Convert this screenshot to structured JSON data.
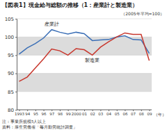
{
  "chart_data": {
    "type": "line",
    "title": "【図表1】現金給与総額の推移（1：産業計と製造業）",
    "subtitle": "（2005年平均=100）",
    "x_label": "（年）",
    "categories": [
      "1993",
      "94",
      "95",
      "96",
      "97",
      "98",
      "99",
      "2000",
      "01",
      "02",
      "03",
      "04",
      "05",
      "06",
      "07",
      "08",
      "09"
    ],
    "series": [
      {
        "name": "産業計",
        "color": "#3b6fb6",
        "values": [
          95.3,
          97.0,
          98.2,
          99.7,
          102.0,
          101.3,
          100.8,
          101.3,
          100.9,
          99.0,
          99.2,
          99.3,
          100.0,
          100.3,
          99.3,
          99.2,
          95.5
        ]
      },
      {
        "name": "製造業",
        "color": "#c8372d",
        "values": [
          87.8,
          89.0,
          91.5,
          94.0,
          96.7,
          96.2,
          95.0,
          96.8,
          96.5,
          95.0,
          97.2,
          98.7,
          100.0,
          101.1,
          100.7,
          100.7,
          93.5
        ]
      }
    ],
    "ylim": [
      80,
      105
    ],
    "yticks": [
      80,
      85,
      90,
      95,
      100,
      105
    ],
    "grid": true,
    "notes": [
      "注：事業所規模5人以上",
      "資料：厚生労働省「毎月勤労統計調査」"
    ]
  }
}
